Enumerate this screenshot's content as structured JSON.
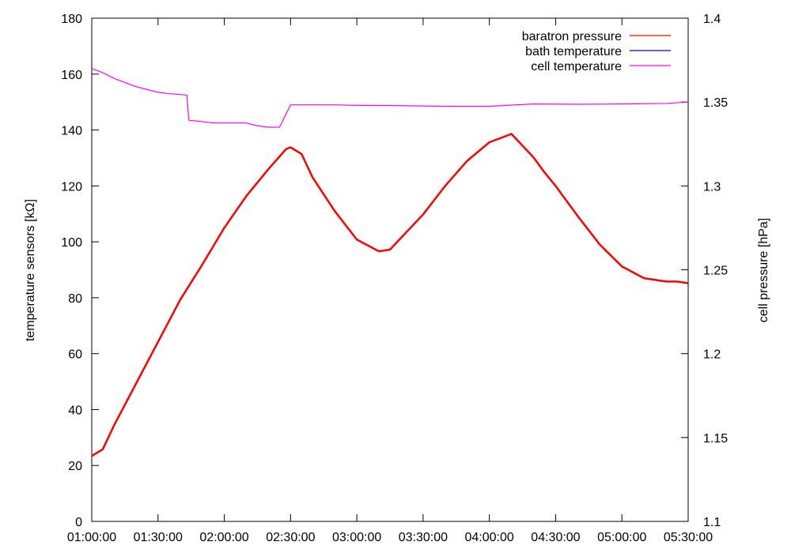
{
  "chart_data": {
    "type": "line",
    "title": "",
    "xlabel": "",
    "ylabel_left": "temperature sensors [kΩ]",
    "ylabel_right": "cell pressure [hPa]",
    "x_ticks": [
      "01:00:00",
      "01:30:00",
      "02:00:00",
      "02:30:00",
      "03:00:00",
      "03:30:00",
      "04:00:00",
      "04:30:00",
      "05:00:00",
      "05:30:00"
    ],
    "xlim_minutes": [
      0,
      270
    ],
    "ylim_left": [
      0,
      180
    ],
    "y_ticks_left": [
      "0",
      "20",
      "40",
      "60",
      "80",
      "100",
      "120",
      "140",
      "160",
      "180"
    ],
    "ylim_right": [
      1.1,
      1.4
    ],
    "y_ticks_right": [
      "1.1",
      "1.15",
      "1.2",
      "1.25",
      "1.3",
      "1.35",
      "1.4"
    ],
    "legend_position": "top-right",
    "grid": false,
    "series": [
      {
        "name": "baratron pressure",
        "axis": "right",
        "color": "#ff0000",
        "x": [
          0,
          5,
          10,
          20,
          30,
          40,
          50,
          60,
          70,
          80,
          88,
          90,
          95,
          100,
          110,
          120,
          130,
          135,
          140,
          150,
          160,
          170,
          180,
          190,
          200,
          205,
          210,
          220,
          230,
          240,
          250,
          260,
          265,
          270
        ],
        "y": [
          1.139,
          1.143,
          1.157,
          1.182,
          1.207,
          1.232,
          1.253,
          1.275,
          1.294,
          1.31,
          1.322,
          1.323,
          1.319,
          1.305,
          1.285,
          1.268,
          1.261,
          1.262,
          1.269,
          1.283,
          1.3,
          1.315,
          1.326,
          1.331,
          1.317,
          1.308,
          1.3,
          1.282,
          1.265,
          1.252,
          1.245,
          1.243,
          1.243,
          1.242
        ]
      },
      {
        "name": "bath temperature",
        "axis": "left",
        "color": "#0000ff",
        "x": [],
        "y": []
      },
      {
        "name": "cell temperature",
        "axis": "left",
        "color": "#ff00ff",
        "x": [
          0,
          5,
          10,
          15,
          20,
          25,
          30,
          35,
          43,
          44,
          50,
          55,
          60,
          70,
          75,
          80,
          85,
          90,
          100,
          110,
          120,
          140,
          160,
          180,
          200,
          220,
          240,
          260,
          270
        ],
        "y": [
          162,
          160.5,
          158.5,
          157,
          155.5,
          154.5,
          153.5,
          153,
          152.5,
          143.5,
          143,
          142.5,
          142.5,
          142.5,
          141.5,
          141,
          141,
          149,
          149,
          149,
          148.8,
          148.7,
          148.5,
          148.5,
          149.3,
          149.2,
          149.3,
          149.5,
          150
        ]
      }
    ]
  }
}
